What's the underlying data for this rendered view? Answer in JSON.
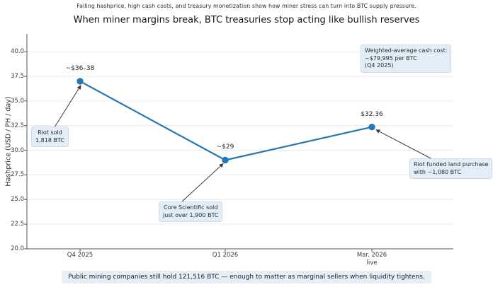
{
  "chart_data": {
    "type": "line",
    "subtitle": "Falling hashprice, high cash costs, and treasury monetization show how miner stress can turn into BTC supply pressure.",
    "title": "When miner margins break, BTC treasuries stop acting like bullish reserves",
    "categories": [
      "Q4 2025",
      "Q1 2026",
      "Mar. 2026\nlive"
    ],
    "values": [
      37,
      29,
      32.36
    ],
    "point_labels": [
      "~$36–38",
      "~$29",
      "$32.36"
    ],
    "xlabel": "",
    "ylabel": "Hashprice (USD / PH / day)",
    "ylim": [
      20,
      41.8
    ],
    "yticks": [
      20,
      22.5,
      25,
      27.5,
      30,
      32.5,
      35,
      37.5,
      40
    ],
    "grid": "horizontal-light",
    "legend": "none",
    "annotations": [
      {
        "target": "Q4 2025",
        "text": "Riot sold\n1,818 BTC"
      },
      {
        "target": "Q1 2026",
        "text": "Core Scientific sold\njust over 1,900 BTC"
      },
      {
        "target": "Mar. 2026",
        "text": "Riot funded land purchase\nwith ~1,080 BTC"
      },
      {
        "target": "none",
        "text": "Weighted-average cash cost:\n~$79,995 per BTC\n(Q4 2025)"
      }
    ],
    "footer": "Public mining companies still hold 121,516 BTC — enough to matter as marginal sellers when liquidity tightens.",
    "colors": {
      "line": "#2577b6",
      "marker": "#2577b6",
      "grid": "#eaeaea",
      "spine": "#555555",
      "arrow": "#3a3a3a",
      "annotation_box_bg": "#e3edf7",
      "annotation_box_border": "#ccdcea"
    }
  }
}
